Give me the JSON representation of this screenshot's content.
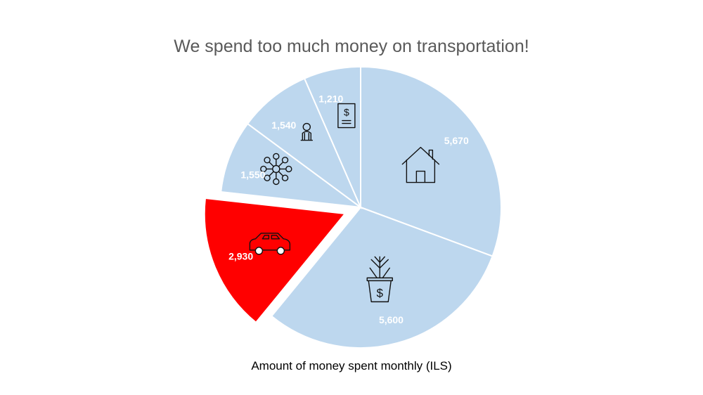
{
  "chart_data": {
    "type": "pie",
    "title": "We spend too much money on transportation!",
    "xlabel": "Amount of money spent monthly (ILS)",
    "slices": [
      {
        "value": 5670,
        "label": "5,670",
        "icon": "house-icon",
        "color": "#BDD7EE",
        "exploded": false
      },
      {
        "value": 5600,
        "label": "5,600",
        "icon": "money-plant-icon",
        "color": "#BDD7EE",
        "exploded": false
      },
      {
        "value": 2930,
        "label": "2,930",
        "icon": "car-icon",
        "color": "#FF0000",
        "exploded": true
      },
      {
        "value": 1550,
        "label": "1,550",
        "icon": "network-icon",
        "color": "#BDD7EE",
        "exploded": false
      },
      {
        "value": 1540,
        "label": "1,540",
        "icon": "person-icon",
        "color": "#BDD7EE",
        "exploded": false
      },
      {
        "value": 1210,
        "label": "1,210",
        "icon": "bill-icon",
        "color": "#BDD7EE",
        "exploded": false
      }
    ],
    "legend": "none"
  }
}
